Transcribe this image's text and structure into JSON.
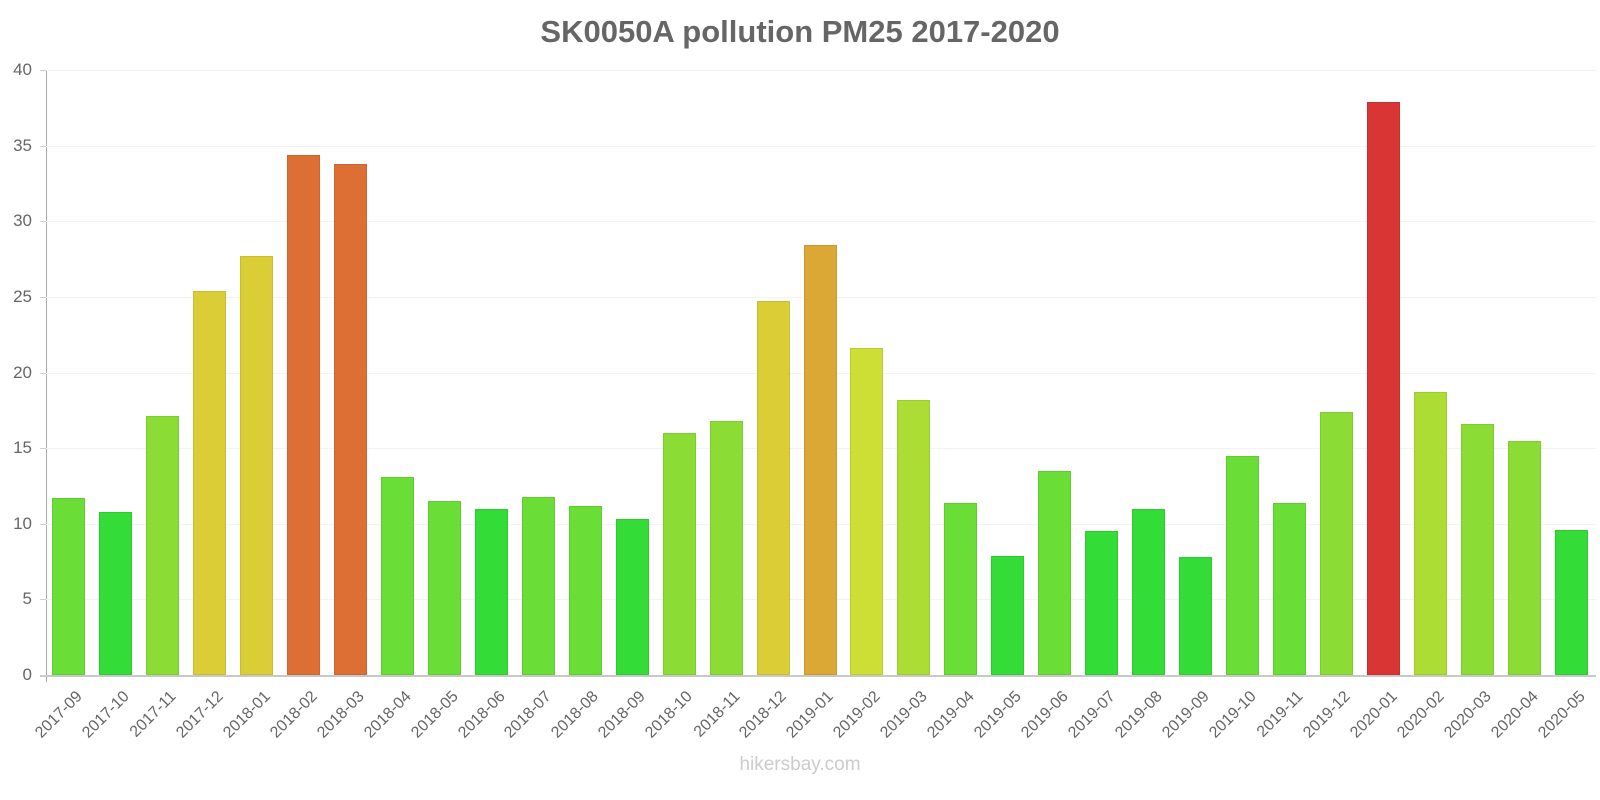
{
  "title": "SK0050A pollution PM25 2017-2020",
  "footer": "hikersbay.com",
  "y_ticks": [
    "0",
    "5",
    "10",
    "15",
    "20",
    "25",
    "30",
    "35",
    "40"
  ],
  "chart_data": {
    "type": "bar",
    "title": "SK0050A pollution PM25 2017-2020",
    "xlabel": "",
    "ylabel": "",
    "ylim": [
      0,
      40
    ],
    "y_ticks": [
      0,
      5,
      10,
      15,
      20,
      25,
      30,
      35,
      40
    ],
    "grid": true,
    "legend": "none",
    "categories": [
      "2017-09",
      "2017-10",
      "2017-11",
      "2017-12",
      "2018-01",
      "2018-02",
      "2018-03",
      "2018-04",
      "2018-05",
      "2018-06",
      "2018-07",
      "2018-08",
      "2018-09",
      "2018-10",
      "2018-11",
      "2018-12",
      "2019-01",
      "2019-02",
      "2019-03",
      "2019-04",
      "2019-05",
      "2019-06",
      "2019-07",
      "2019-08",
      "2019-09",
      "2019-10",
      "2019-11",
      "2019-12",
      "2020-01",
      "2020-02",
      "2020-03",
      "2020-04",
      "2020-05"
    ],
    "values": [
      11.7,
      10.8,
      17.1,
      25.4,
      27.7,
      34.4,
      33.8,
      13.1,
      11.5,
      11.0,
      11.8,
      11.2,
      10.3,
      16.0,
      16.8,
      24.7,
      28.4,
      21.6,
      18.2,
      11.4,
      7.9,
      13.5,
      9.5,
      11.0,
      7.8,
      14.5,
      11.4,
      17.4,
      37.9,
      18.7,
      16.6,
      15.5,
      9.6
    ],
    "colors": [
      "#6add37",
      "#34dc37",
      "#8bdd35",
      "#dacd35",
      "#dacd35",
      "#dd6f35",
      "#dd6f35",
      "#6add37",
      "#6add37",
      "#34dc37",
      "#6add37",
      "#6add37",
      "#34dc37",
      "#8bdd35",
      "#8bdd35",
      "#dacd35",
      "#dba836",
      "#cdde35",
      "#acdd35",
      "#6add37",
      "#34dc37",
      "#6add37",
      "#34dc37",
      "#34dc37",
      "#34dc37",
      "#6add37",
      "#6add37",
      "#8bdd35",
      "#da3535",
      "#acdd35",
      "#8bdd35",
      "#8bdd35",
      "#34dc37"
    ]
  }
}
